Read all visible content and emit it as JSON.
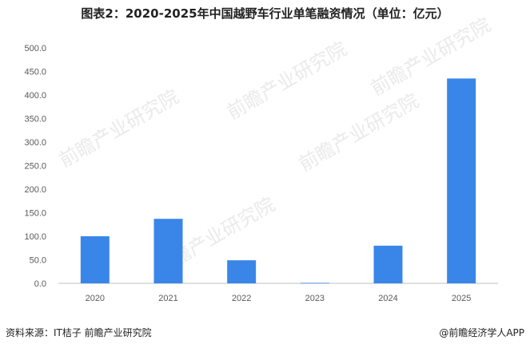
{
  "title": "图表2：2020-2025年中国越野车行业单笔融资情况（单位：亿元）",
  "source": "资料来源：IT桔子  前瞻产业研究院",
  "brand": "@前瞻经济学人APP",
  "watermark": "前瞻产业研究院",
  "colors": {
    "bar": "#3a86e8",
    "axis": "#bfbfbf",
    "text": "#595959"
  },
  "chart_data": {
    "type": "bar",
    "title": "图表2：2020-2025年中国越野车行业单笔融资情况（单位：亿元）",
    "xlabel": "",
    "ylabel": "",
    "categories": [
      "2020",
      "2021",
      "2022",
      "2023",
      "2024",
      "2025"
    ],
    "values": [
      100,
      137,
      49,
      1,
      80,
      435
    ],
    "ylim": [
      0,
      500
    ],
    "yticks": [
      "0.0",
      "50.0",
      "100.0",
      "150.0",
      "200.0",
      "250.0",
      "300.0",
      "350.0",
      "400.0",
      "450.0",
      "500.0"
    ],
    "grid": false,
    "legend": "none"
  }
}
